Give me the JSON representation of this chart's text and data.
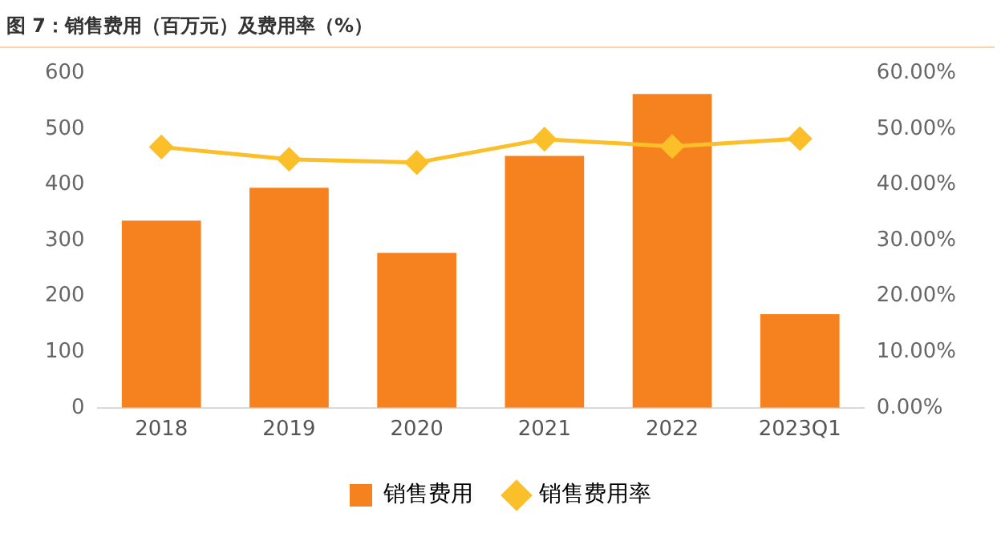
{
  "chart_data": {
    "type": "bar",
    "title": "图 7：销售费用（百万元）及费用率（%）",
    "categories": [
      "2018",
      "2019",
      "2020",
      "2021",
      "2022",
      "2023Q1"
    ],
    "series": [
      {
        "name": "销售费用",
        "color": "#f5821f",
        "values": [
          336,
          395,
          278,
          452,
          563,
          168
        ]
      },
      {
        "name": "销售费用率",
        "type": "line",
        "axis": "y2",
        "color": "#fbbf2a",
        "values": [
          46.8,
          44.6,
          44.0,
          48.2,
          46.9,
          48.3
        ]
      }
    ],
    "ylim": [
      0,
      600
    ],
    "yticks": [
      0,
      100,
      200,
      300,
      400,
      500,
      600
    ],
    "y2lim": [
      0,
      60
    ],
    "y2ticks": [
      {
        "value": 0,
        "label": "0.00%"
      },
      {
        "value": 10,
        "label": "10.00%"
      },
      {
        "value": 20,
        "label": "20.00%"
      },
      {
        "value": 30,
        "label": "30.00%"
      },
      {
        "value": 40,
        "label": "40.00%"
      },
      {
        "value": 50,
        "label": "50.00%"
      },
      {
        "value": 60,
        "label": "60.00%"
      }
    ],
    "grid": false,
    "legend": "bottom",
    "marker": "diamond"
  }
}
